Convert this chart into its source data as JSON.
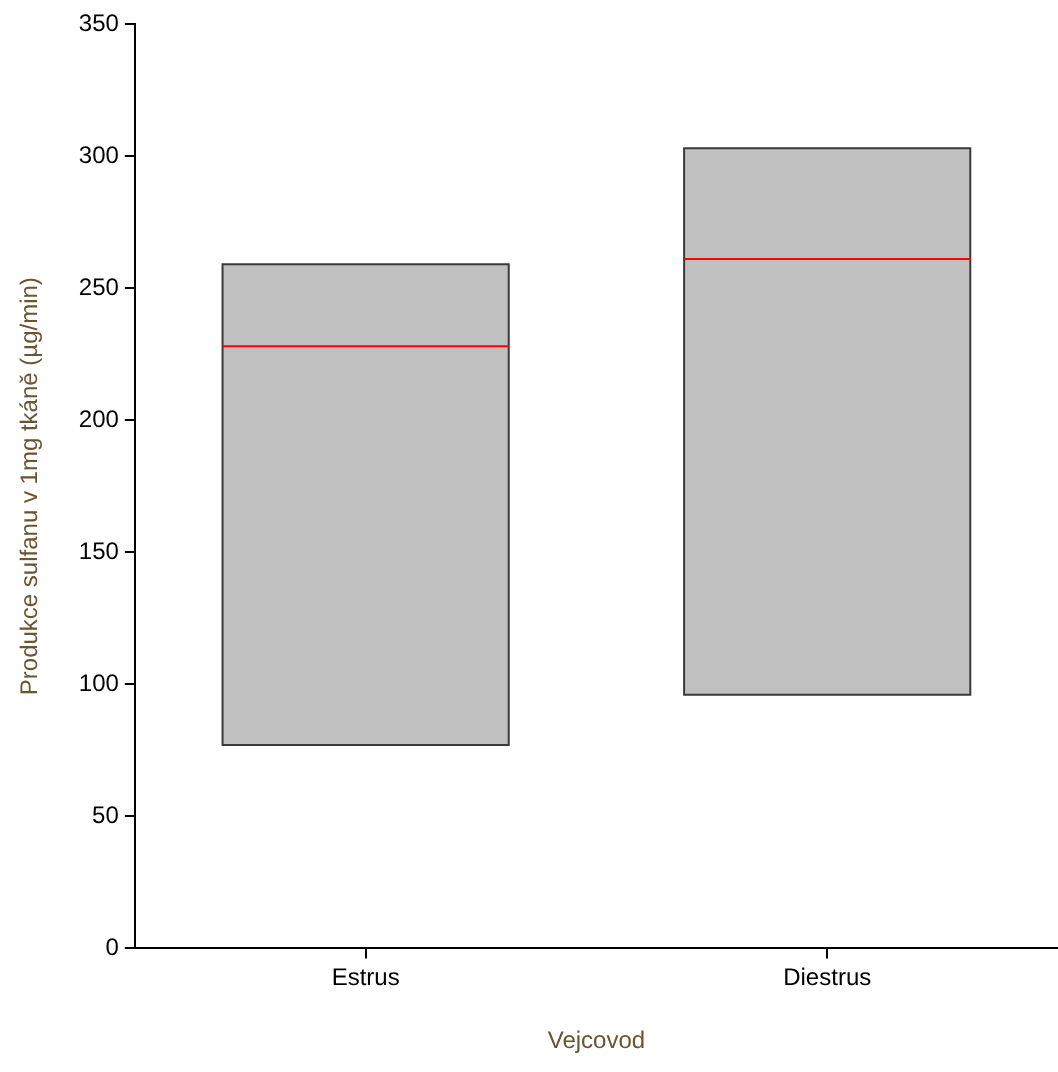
{
  "chart_data": {
    "type": "box",
    "xlabel": "Vejcovod",
    "ylabel": "Produkce sulfanu v 1mg tkáně (µg/min)",
    "categories": [
      "Estrus",
      "Diestrus"
    ],
    "series": [
      {
        "color": "#c0c0c0",
        "boxes": [
          {
            "low": 77,
            "q1": 77,
            "median": 228,
            "q3": 259,
            "high": 259
          },
          {
            "low": 96,
            "q1": 96,
            "median": 261,
            "q3": 303,
            "high": 303
          }
        ]
      }
    ],
    "ylim": [
      0,
      350
    ],
    "yticks": [
      0,
      50,
      100,
      150,
      200,
      250,
      300,
      350
    ],
    "grid": false,
    "legend": false
  }
}
